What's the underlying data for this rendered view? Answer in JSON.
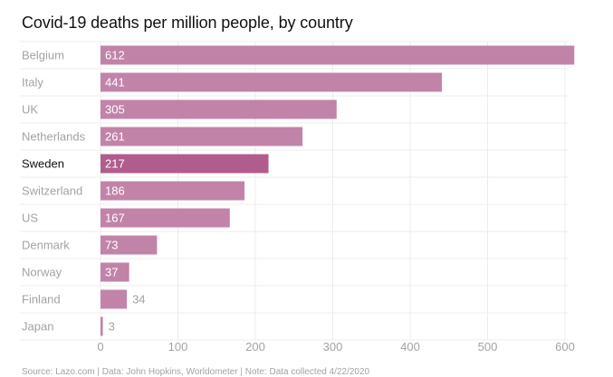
{
  "chart_data": {
    "type": "bar",
    "orientation": "horizontal",
    "title": "Covid-19 deaths per million people, by country",
    "categories": [
      "Belgium",
      "Italy",
      "UK",
      "Netherlands",
      "Sweden",
      "Switzerland",
      "US",
      "Denmark",
      "Norway",
      "Finland",
      "Japan"
    ],
    "values": [
      612,
      441,
      305,
      261,
      217,
      186,
      167,
      73,
      37,
      34,
      3
    ],
    "highlight": "Sweden",
    "xlim": [
      0,
      625
    ],
    "xticks": [
      0,
      100,
      200,
      300,
      400,
      500,
      600
    ],
    "grid": true,
    "colors": {
      "bar": "#c283a9",
      "highlight": "#b05d8d"
    },
    "source": "Source: Lazo.com | Data: John Hopkins, Worldometer | Note: Data collected 4/22/2020"
  }
}
